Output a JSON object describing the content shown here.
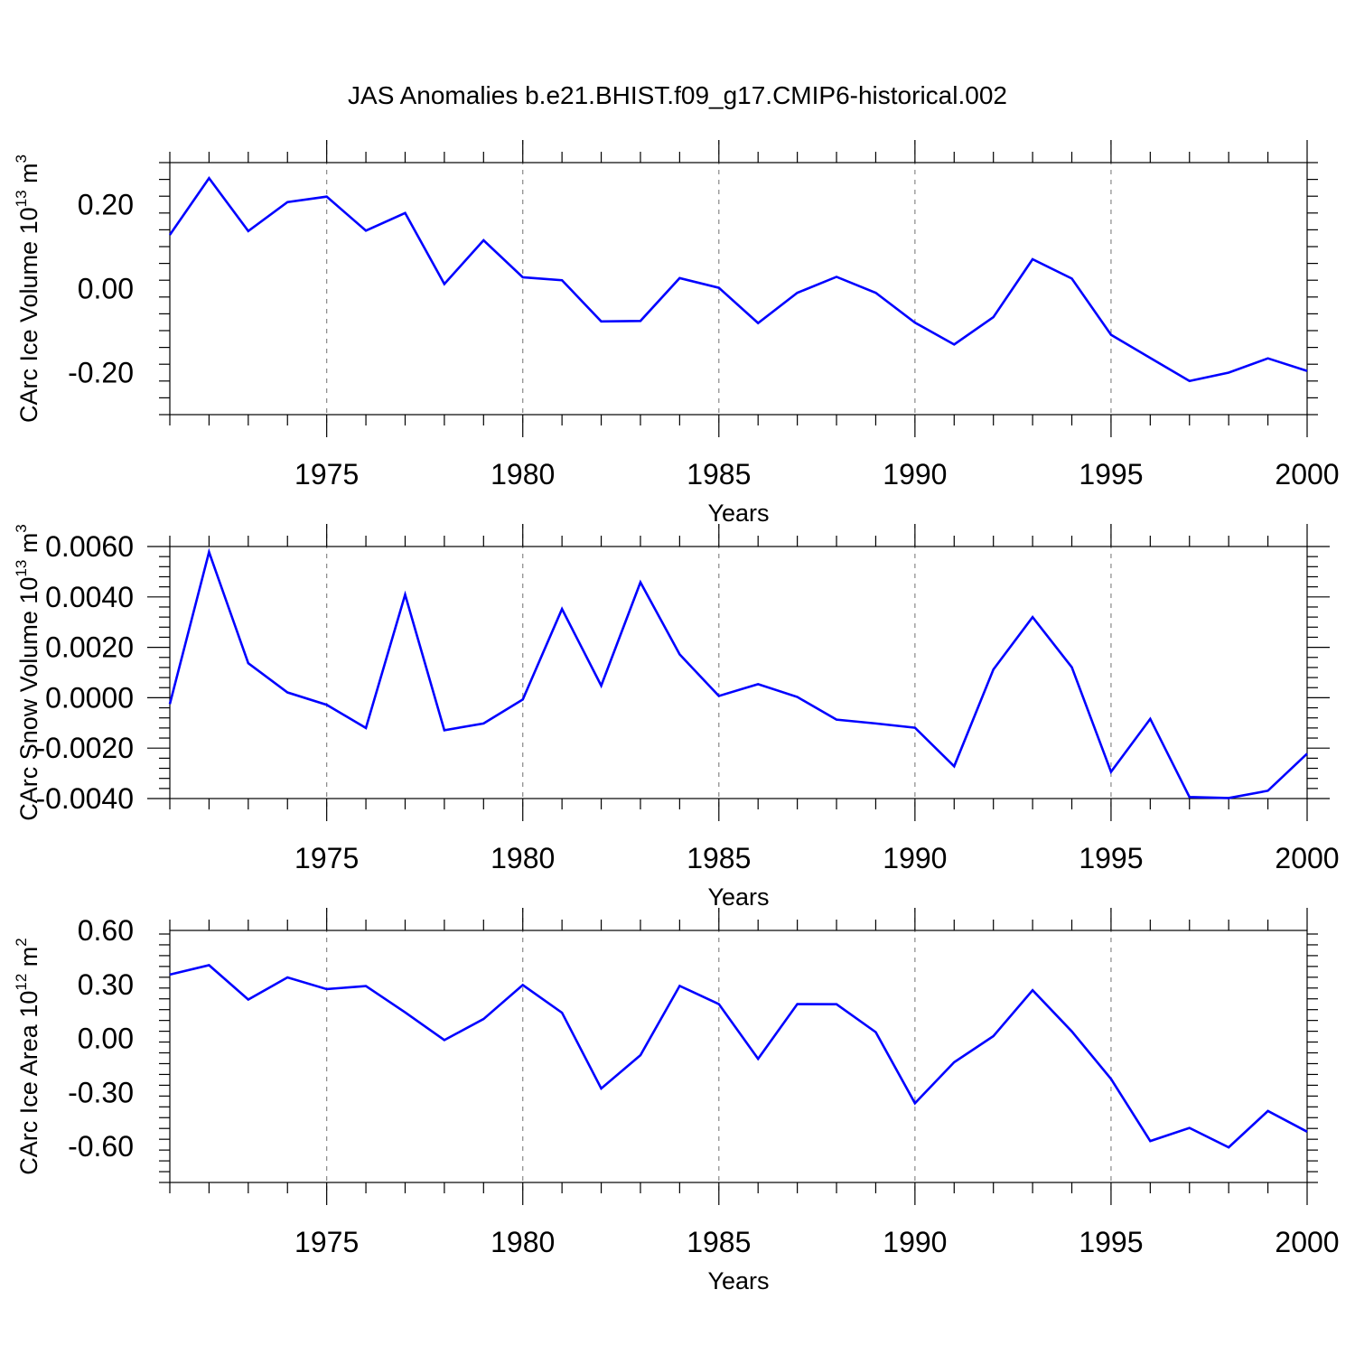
{
  "figure": {
    "title": "JAS Anomalies b.e21.BHIST.f09_g17.CMIP6-historical.002"
  },
  "colors": {
    "line": "#0000ff",
    "axis": "#000000",
    "grid": "#888888"
  },
  "chart_data": [
    {
      "type": "line",
      "xlabel": "Years",
      "ylabel": "CArc Ice Volume 10",
      "ylabel_exp": "13",
      "ylabel_unit": " m",
      "ylabel_unit_exp": "3",
      "xlim": [
        1971,
        2000
      ],
      "ylim": [
        -0.3,
        0.3
      ],
      "xticks": [
        1975,
        1980,
        1985,
        1990,
        1995,
        2000
      ],
      "xtick_labels": [
        "1975",
        "1980",
        "1985",
        "1990",
        "1995",
        "2000"
      ],
      "yticks": [
        -0.2,
        0.0,
        0.2
      ],
      "ytick_labels": [
        "-0.20",
        "0.00",
        "0.20"
      ],
      "x": [
        1971,
        1972,
        1973,
        1974,
        1975,
        1976,
        1977,
        1978,
        1979,
        1980,
        1981,
        1982,
        1983,
        1984,
        1985,
        1986,
        1987,
        1988,
        1989,
        1990,
        1991,
        1992,
        1993,
        1994,
        1995,
        1996,
        1997,
        1998,
        1999,
        2000
      ],
      "series": [
        {
          "values": [
            0.128,
            0.263,
            0.137,
            0.206,
            0.219,
            0.138,
            0.18,
            0.011,
            0.115,
            0.027,
            0.02,
            -0.078,
            -0.077,
            0.025,
            0.002,
            -0.082,
            -0.01,
            0.028,
            -0.01,
            -0.081,
            -0.133,
            -0.068,
            0.07,
            0.024,
            -0.11,
            -0.165,
            -0.22,
            -0.2,
            -0.166,
            -0.196
          ]
        }
      ]
    },
    {
      "type": "line",
      "xlabel": "Years",
      "ylabel": "CArc Snow Volume 10",
      "ylabel_exp": "13",
      "ylabel_unit": " m",
      "ylabel_unit_exp": "3",
      "xlim": [
        1971,
        2000
      ],
      "ylim": [
        -0.004,
        0.006
      ],
      "xticks": [
        1975,
        1980,
        1985,
        1990,
        1995,
        2000
      ],
      "xtick_labels": [
        "1975",
        "1980",
        "1985",
        "1990",
        "1995",
        "2000"
      ],
      "yticks": [
        -0.004,
        -0.002,
        0.0,
        0.002,
        0.004,
        0.006
      ],
      "ytick_labels": [
        "-0.0040",
        "-0.0020",
        "0.0000",
        "0.0020",
        "0.0040",
        "0.0060"
      ],
      "x": [
        1971,
        1972,
        1973,
        1974,
        1975,
        1976,
        1977,
        1978,
        1979,
        1980,
        1981,
        1982,
        1983,
        1984,
        1985,
        1986,
        1987,
        1988,
        1989,
        1990,
        1991,
        1992,
        1993,
        1994,
        1995,
        1996,
        1997,
        1998,
        1999,
        2000
      ],
      "series": [
        {
          "values": [
            -0.00025,
            0.00578,
            0.00137,
            0.00021,
            -0.00028,
            -0.0012,
            0.00409,
            -0.00129,
            -0.00102,
            -7e-05,
            0.00352,
            0.00048,
            0.00458,
            0.00172,
            7e-05,
            0.00054,
            3e-05,
            -0.00087,
            -0.00102,
            -0.00119,
            -0.00272,
            0.00112,
            0.0032,
            0.00121,
            -0.00294,
            -0.00084,
            -0.00394,
            -0.00398,
            -0.00369,
            -0.00222
          ]
        }
      ]
    },
    {
      "type": "line",
      "xlabel": "Years",
      "ylabel": "CArc Ice Area 10",
      "ylabel_exp": "12",
      "ylabel_unit": " m",
      "ylabel_unit_exp": "2",
      "xlim": [
        1971,
        2000
      ],
      "ylim": [
        -0.8,
        0.6
      ],
      "xticks": [
        1975,
        1980,
        1985,
        1990,
        1995,
        2000
      ],
      "xtick_labels": [
        "1975",
        "1980",
        "1985",
        "1990",
        "1995",
        "2000"
      ],
      "yticks": [
        -0.6,
        -0.3,
        0.0,
        0.3,
        0.6
      ],
      "ytick_labels": [
        "-0.60",
        "-0.30",
        "0.00",
        "0.30",
        "0.60"
      ],
      "x": [
        1971,
        1972,
        1973,
        1974,
        1975,
        1976,
        1977,
        1978,
        1979,
        1980,
        1981,
        1982,
        1983,
        1984,
        1985,
        1986,
        1987,
        1988,
        1989,
        1990,
        1991,
        1992,
        1993,
        1994,
        1995,
        1996,
        1997,
        1998,
        1999,
        2000
      ],
      "series": [
        {
          "values": [
            0.355,
            0.407,
            0.216,
            0.339,
            0.274,
            0.291,
            0.145,
            -0.009,
            0.108,
            0.297,
            0.143,
            -0.278,
            -0.093,
            0.292,
            0.191,
            -0.113,
            0.191,
            0.19,
            0.035,
            -0.36,
            -0.132,
            0.013,
            0.268,
            0.039,
            -0.225,
            -0.57,
            -0.497,
            -0.605,
            -0.403,
            -0.518
          ]
        }
      ]
    }
  ]
}
